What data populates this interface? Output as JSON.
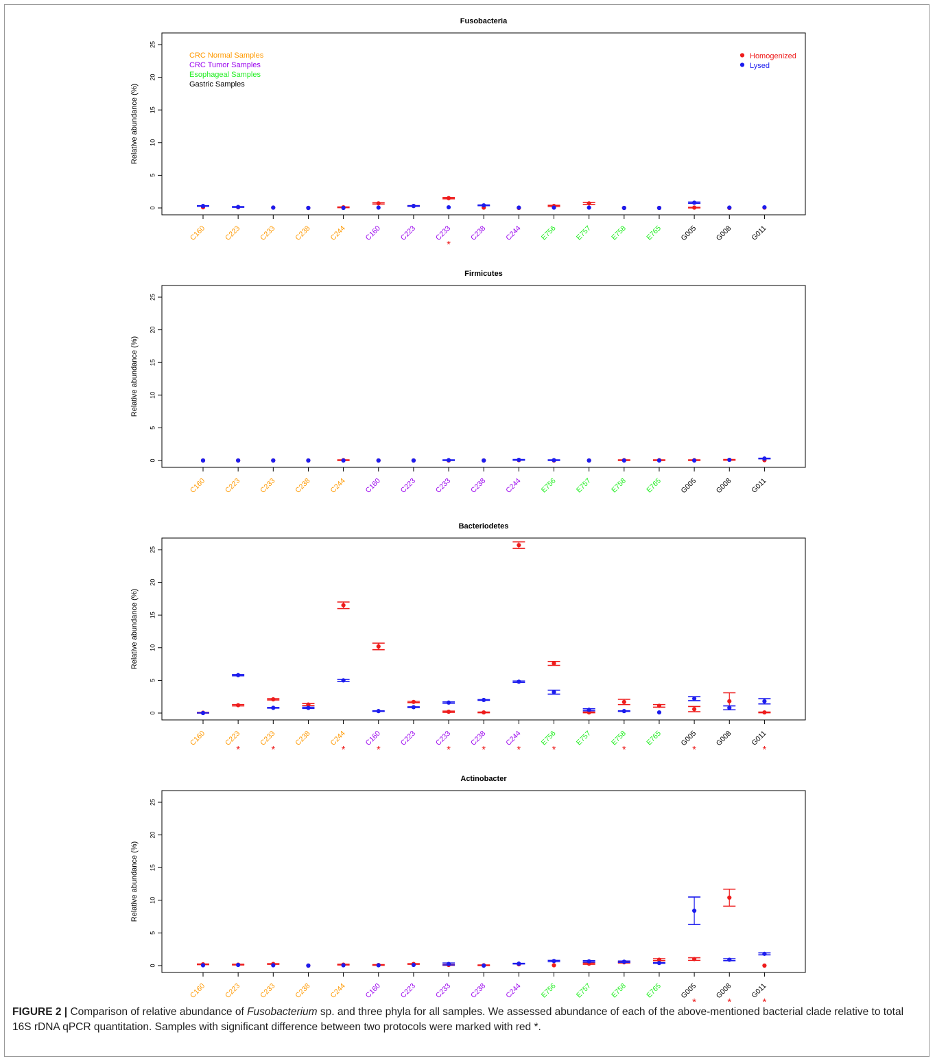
{
  "colors": {
    "homogenized": "#ee1c1c",
    "lysed": "#1c1cee",
    "crc_normal": "#ff9900",
    "crc_tumor": "#9900ee",
    "esophageal": "#22ee22",
    "gastric": "#000000",
    "significance": "#ee1c1c"
  },
  "sample_colors": [
    "crc_normal",
    "crc_normal",
    "crc_normal",
    "crc_normal",
    "crc_normal",
    "crc_tumor",
    "crc_tumor",
    "crc_tumor",
    "crc_tumor",
    "crc_tumor",
    "esophageal",
    "esophageal",
    "esophageal",
    "esophageal",
    "gastric",
    "gastric",
    "gastric"
  ],
  "group_legend": [
    {
      "label": "CRC Normal Samples",
      "color_key": "crc_normal"
    },
    {
      "label": "CRC Tumor Samples",
      "color_key": "crc_tumor"
    },
    {
      "label": "Esophageal Samples",
      "color_key": "esophageal"
    },
    {
      "label": "Gastric Samples",
      "color_key": "gastric"
    }
  ],
  "method_legend": [
    {
      "label": "Homogenized",
      "color_key": "homogenized"
    },
    {
      "label": "Lysed",
      "color_key": "lysed"
    }
  ],
  "chart_data": [
    {
      "type": "scatter",
      "title": "Fusobacteria",
      "ylabel": "Relative abundance (%)",
      "ylim": [
        0,
        27
      ],
      "yticks": [
        "0",
        "5",
        "10",
        "15",
        "20",
        "25"
      ],
      "categories": [
        "C160",
        "C223",
        "C233",
        "C238",
        "C244",
        "C160",
        "C223",
        "C233",
        "C238",
        "C244",
        "E756",
        "E757",
        "E758",
        "E765",
        "G005",
        "G008",
        "G011"
      ],
      "series": [
        {
          "name": "Homogenized",
          "values": [
            0.1,
            0.1,
            0.05,
            0,
            0.1,
            0.7,
            0.3,
            1.5,
            0.05,
            0,
            0.3,
            0.7,
            0,
            0,
            0.05,
            0,
            0.05
          ],
          "err": [
            0,
            0,
            0,
            0,
            0.05,
            0.1,
            0.05,
            0.1,
            0,
            0,
            0.1,
            0.15,
            0,
            0,
            0.05,
            0,
            0
          ]
        },
        {
          "name": "Lysed",
          "values": [
            0.3,
            0.15,
            0.05,
            0,
            0,
            0.05,
            0.3,
            0.1,
            0.4,
            0.05,
            0.05,
            0.05,
            0,
            0,
            0.8,
            0.05,
            0.1
          ],
          "err": [
            0.05,
            0.05,
            0,
            0,
            0,
            0,
            0.05,
            0,
            0.05,
            0,
            0,
            0,
            0,
            0,
            0.1,
            0,
            0
          ]
        }
      ],
      "significant": [
        false,
        false,
        false,
        false,
        false,
        false,
        false,
        true,
        false,
        false,
        false,
        false,
        false,
        false,
        false,
        false,
        false
      ],
      "show_legend": true
    },
    {
      "type": "scatter",
      "title": "Firmicutes",
      "ylabel": "Relative abundance (%)",
      "ylim": [
        0,
        27
      ],
      "yticks": [
        "0",
        "5",
        "10",
        "15",
        "20",
        "25"
      ],
      "categories": [
        "C160",
        "C223",
        "C233",
        "C238",
        "C244",
        "C160",
        "C223",
        "C233",
        "C238",
        "C244",
        "E756",
        "E757",
        "E758",
        "E765",
        "G005",
        "G008",
        "G011"
      ],
      "series": [
        {
          "name": "Homogenized",
          "values": [
            0,
            0,
            0,
            0,
            0.05,
            0,
            0,
            0,
            0,
            0.05,
            0,
            0,
            0.05,
            0.05,
            0.05,
            0.1,
            0.05
          ],
          "err": [
            0,
            0,
            0,
            0,
            0.05,
            0,
            0,
            0,
            0,
            0,
            0,
            0,
            0.05,
            0.05,
            0.05,
            0.05,
            0
          ]
        },
        {
          "name": "Lysed",
          "values": [
            0,
            0,
            0,
            0,
            0,
            0,
            0,
            0.05,
            0,
            0.1,
            0.05,
            0,
            0,
            0,
            0,
            0.1,
            0.3
          ],
          "err": [
            0,
            0,
            0,
            0,
            0,
            0,
            0,
            0.05,
            0,
            0.05,
            0.05,
            0,
            0,
            0,
            0,
            0,
            0.05
          ]
        }
      ],
      "significant": [
        false,
        false,
        false,
        false,
        false,
        false,
        false,
        false,
        false,
        false,
        false,
        false,
        false,
        false,
        false,
        false,
        false
      ],
      "show_legend": false
    },
    {
      "type": "scatter",
      "title": "Bacteriodetes",
      "ylabel": "Relative abundance (%)",
      "ylim": [
        0,
        27
      ],
      "yticks": [
        "0",
        "5",
        "10",
        "15",
        "20",
        "25"
      ],
      "categories": [
        "C160",
        "C223",
        "C233",
        "C238",
        "C244",
        "C160",
        "C223",
        "C233",
        "C238",
        "C244",
        "E756",
        "E757",
        "E758",
        "E765",
        "G005",
        "G008",
        "G011"
      ],
      "series": [
        {
          "name": "Homogenized",
          "values": [
            0.05,
            1.2,
            2.1,
            1.3,
            16.5,
            10.2,
            1.7,
            0.2,
            0.1,
            25.7,
            7.6,
            0.1,
            1.7,
            1.1,
            0.6,
            1.8,
            0.1
          ],
          "err": [
            0.05,
            0.1,
            0.1,
            0.15,
            0.5,
            0.5,
            0.1,
            0.1,
            0.05,
            0.5,
            0.3,
            0.05,
            0.4,
            0.2,
            0.4,
            1.3,
            0.05
          ]
        },
        {
          "name": "Lysed",
          "values": [
            0,
            5.8,
            0.8,
            0.8,
            5.0,
            0.3,
            0.9,
            1.6,
            2.0,
            4.8,
            3.2,
            0.5,
            0.3,
            0.1,
            2.2,
            0.8,
            1.8
          ]
        },
        {
          "name": "",
          "values": [],
          "err": []
        }
      ],
      "lysed_err": [
        0.05,
        0.1,
        0.05,
        0.1,
        0.15,
        0.05,
        0.05,
        0.1,
        0.05,
        0.1,
        0.3,
        0.15,
        0.05,
        0,
        0.3,
        0.3,
        0.4
      ],
      "significant": [
        false,
        true,
        true,
        false,
        true,
        true,
        false,
        true,
        true,
        true,
        true,
        false,
        true,
        false,
        true,
        false,
        true
      ],
      "show_legend": false
    },
    {
      "type": "scatter",
      "title": "Actinobacter",
      "ylabel": "Relative abundance (%)",
      "ylim": [
        0,
        27
      ],
      "yticks": [
        "0",
        "5",
        "10",
        "15",
        "20",
        "25"
      ],
      "categories": [
        "C160",
        "C223",
        "C233",
        "C238",
        "C244",
        "C160",
        "C223",
        "C233",
        "C238",
        "C244",
        "E756",
        "E757",
        "E758",
        "E765",
        "G005",
        "G008",
        "G011"
      ],
      "series": [
        {
          "name": "Homogenized",
          "values": [
            0.2,
            0.15,
            0.25,
            0,
            0.15,
            0.1,
            0.25,
            0.1,
            0.05,
            0.2,
            0.05,
            0.3,
            0.5,
            0.9,
            1.0,
            10.4,
            0
          ],
          "err": [
            0.05,
            0.05,
            0.05,
            0,
            0.05,
            0.05,
            0.05,
            0.05,
            0.05,
            0,
            0,
            0.1,
            0.1,
            0.15,
            0.2,
            1.3,
            0
          ]
        },
        {
          "name": "Lysed",
          "values": [
            0.05,
            0.1,
            0.05,
            0,
            0.05,
            0.05,
            0.1,
            0.25,
            0,
            0.3,
            0.7,
            0.65,
            0.6,
            0.4,
            8.4,
            0.9,
            1.8
          ],
          "err": [
            0,
            0,
            0,
            0,
            0,
            0,
            0,
            0.15,
            0,
            0.05,
            0.1,
            0.1,
            0.1,
            0.05,
            2.1,
            0.15,
            0.15
          ]
        }
      ],
      "significant": [
        false,
        false,
        false,
        false,
        false,
        false,
        false,
        false,
        false,
        false,
        false,
        false,
        false,
        false,
        true,
        true,
        true
      ],
      "show_legend": false
    }
  ],
  "caption": {
    "label": "FIGURE 2 |",
    "text_before": " Comparison of relative abundance of ",
    "emphasis": "Fusobacterium",
    "text_after": " sp. and three phyla for all samples. We assessed abundance of each of the above-mentioned bacterial clade relative to total 16S rDNA qPCR quantitation. Samples with significant difference between two protocols were marked with red *."
  }
}
